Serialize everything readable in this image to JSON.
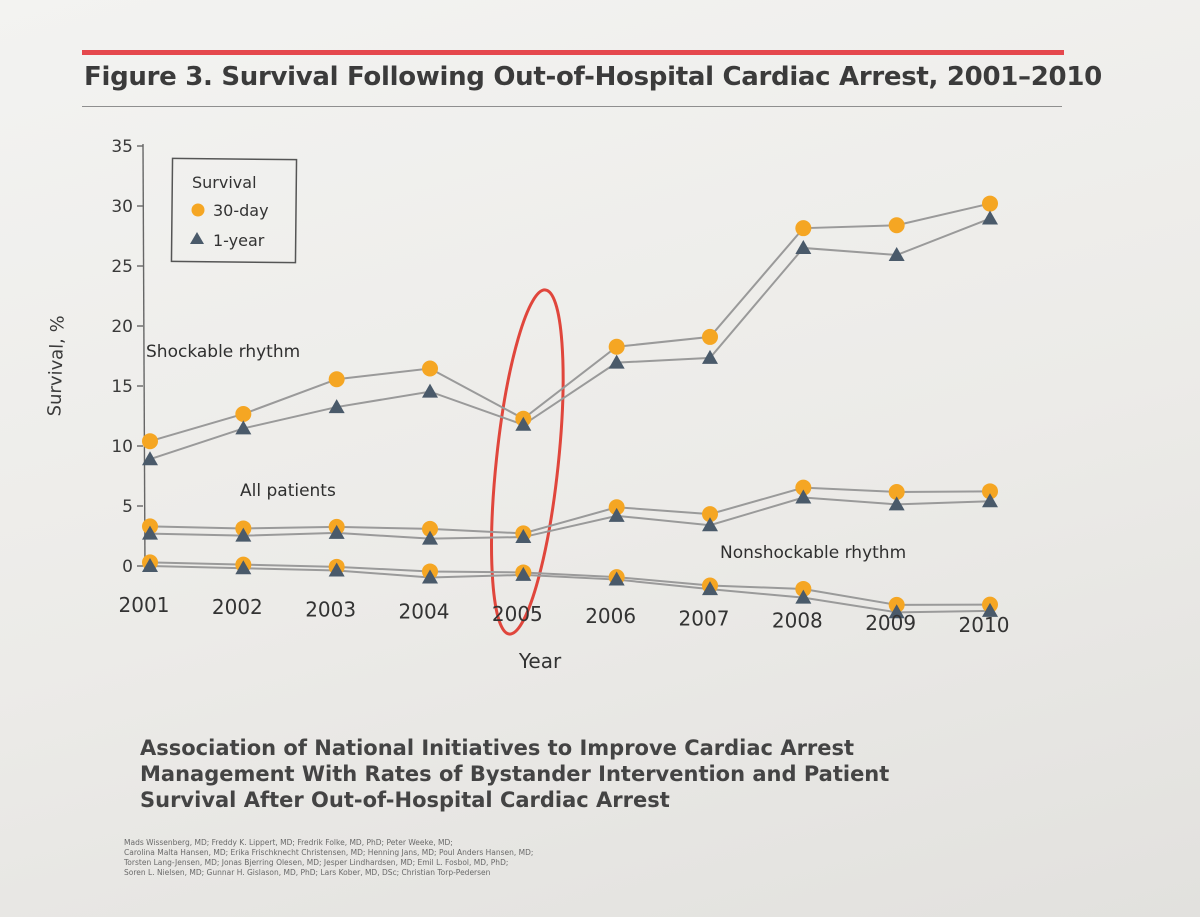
{
  "figure": {
    "title": "Figure 3. Survival Following Out-of-Hospital Cardiac Arrest, 2001–2010",
    "caption": "Association of National Initiatives to Improve Cardiac Arrest Management With Rates of Bystander Intervention and Patient Survival After Out-of-Hospital Cardiac Arrest",
    "authors": [
      "Mads Wissenberg, MD; Freddy K. Lippert, MD; Fredrik Folke, MD, PhD; Peter Weeke, MD;",
      "Carolina Malta Hansen, MD; Erika Frischknecht Christensen, MD; Henning Jans, MD; Poul Anders Hansen, MD;",
      "Torsten Lang-Jensen, MD; Jonas Bjerring Olesen, MD; Jesper Lindhardsen, MD; Emil L. Fosbol, MD, PhD;",
      "Soren L. Nielsen, MD; Gunnar H. Gislason, MD, PhD; Lars Kober, MD, DSc; Christian Torp-Pedersen"
    ],
    "annotation": "red ellipse highlighting 2005"
  },
  "colors": {
    "accent_rule": "#e5484d",
    "thirty_day": "#f5a623",
    "one_year": "#4a5a6a",
    "line": "#9a9a9a",
    "highlight": "#e0463c"
  },
  "chart_data": {
    "type": "line",
    "title": "Figure 3. Survival Following Out-of-Hospital Cardiac Arrest, 2001–2010",
    "xlabel": "Year",
    "ylabel": "Survival, %",
    "ylim": [
      0,
      35
    ],
    "yticks": [
      0,
      5,
      10,
      15,
      20,
      25,
      30,
      35
    ],
    "x": [
      "2001",
      "2002",
      "2003",
      "2004",
      "2005",
      "2006",
      "2007",
      "2008",
      "2009",
      "2010"
    ],
    "legend": {
      "title": "Survival",
      "entries": [
        "30-day",
        "1-year"
      ],
      "position": "top-left"
    },
    "group_labels": [
      "Shockable rhythm",
      "All patients",
      "Nonshockable rhythm"
    ],
    "series": [
      {
        "group": "Shockable rhythm",
        "name": "30-day",
        "values": [
          10.4,
          12.8,
          15.8,
          16.8,
          12.8,
          18.8,
          19.7,
          28.6,
          28.9,
          30.7
        ]
      },
      {
        "group": "Shockable rhythm",
        "name": "1-year",
        "values": [
          8.9,
          11.6,
          13.5,
          14.9,
          12.3,
          17.5,
          18.0,
          27.0,
          26.5,
          29.5
        ]
      },
      {
        "group": "All patients",
        "name": "30-day",
        "values": [
          3.3,
          3.3,
          3.6,
          3.6,
          3.4,
          5.7,
          5.3,
          7.6,
          7.4,
          7.6
        ]
      },
      {
        "group": "All patients",
        "name": "1-year",
        "values": [
          2.7,
          2.7,
          3.1,
          2.8,
          3.1,
          5.0,
          4.4,
          6.8,
          6.4,
          6.8
        ]
      },
      {
        "group": "Nonshockable rhythm",
        "name": "30-day",
        "values": [
          0.3,
          0.3,
          0.3,
          0.1,
          0.2,
          0.0,
          -0.5,
          -0.6,
          -1.7,
          -1.5
        ]
      },
      {
        "group": "Nonshockable rhythm",
        "name": "1-year",
        "values": [
          0.0,
          0.0,
          0.0,
          -0.4,
          0.0,
          -0.2,
          -0.8,
          -1.3,
          -2.3,
          -2.0
        ]
      }
    ],
    "highlight_category": "2005"
  }
}
